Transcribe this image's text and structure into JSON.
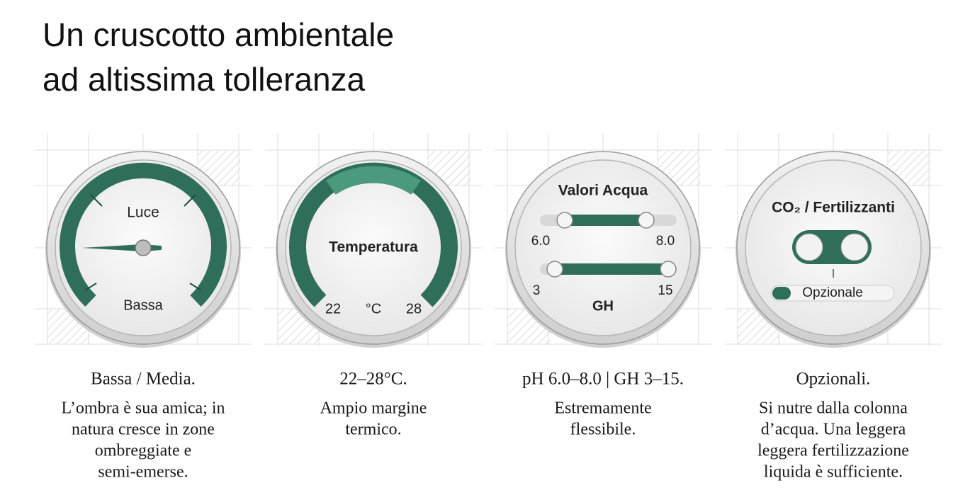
{
  "header": {
    "title_lines": [
      "Un cruscotto ambientale",
      "ad altissima tolleranza"
    ]
  },
  "cards": [
    {
      "gauge": {
        "label": "Luce",
        "value_label": "Bassa"
      },
      "heading": "Bassa / Media.",
      "description_lines": [
        "L’ombra è sua amica; in",
        "natura cresce in zone",
        "ombreggiate e",
        "semi-emerse."
      ]
    },
    {
      "gauge": {
        "label": "Temperatura",
        "min_label": "22",
        "unit": "°C",
        "max_label": "28"
      },
      "heading": "22–28°C.",
      "description_lines": [
        "Ampio margine",
        "termico."
      ]
    },
    {
      "gauge": {
        "label": "Valori Acqua",
        "ph_min": "6.0",
        "ph_max": "8.0",
        "gh_min": "3",
        "gh_max": "15",
        "gh_label": "GH"
      },
      "heading": "pH 6.0–8.0 | GH 3–15.",
      "description_lines": [
        "Estremamente",
        "flessibile."
      ]
    },
    {
      "gauge": {
        "label": "CO₂ / Fertilizzanti",
        "toggle_label": "Opzionale"
      },
      "heading": "Opzionali.",
      "description_lines": [
        "Si nutre dalla colonna",
        "d’acqua. Una leggera",
        "leggera fertilizzazione",
        "liquida è sufficiente."
      ]
    }
  ]
}
